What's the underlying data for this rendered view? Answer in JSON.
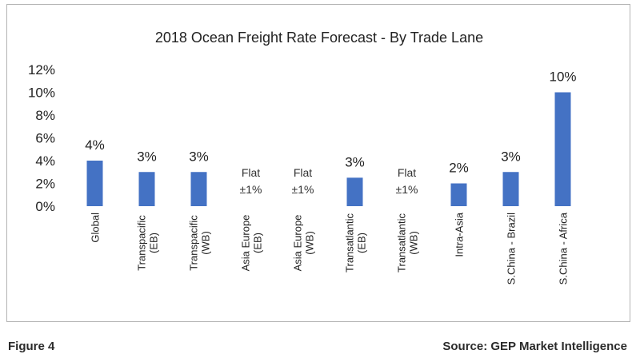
{
  "figure_label": "Figure 4",
  "source_label": "Source: GEP Market Intelligence",
  "chart_data": {
    "type": "bar",
    "title": "2018 Ocean Freight Rate Forecast - By Trade Lane",
    "xlabel": "",
    "ylabel": "",
    "ylim": [
      0,
      12
    ],
    "yticks": [
      "0%",
      "2%",
      "4%",
      "6%",
      "8%",
      "10%",
      "12%"
    ],
    "grid": false,
    "legend": "none",
    "bar_color": "#4472c4",
    "categories": [
      [
        "Global"
      ],
      [
        "Transpacific",
        "(EB)"
      ],
      [
        "Transpacific",
        "(WB)"
      ],
      [
        "Asia Europe",
        "(EB)"
      ],
      [
        "Asia Europe",
        "(WB)"
      ],
      [
        "Transatlantic",
        "(EB)"
      ],
      [
        "Transatlantic",
        "(WB)"
      ],
      [
        "Intra-Asia"
      ],
      [
        "S.China - Brazil"
      ],
      [
        "S.China - Africa"
      ]
    ],
    "values": [
      4,
      3,
      3,
      0,
      0,
      2.5,
      0,
      2,
      3,
      10
    ],
    "data_labels": [
      [
        "4%"
      ],
      [
        "3%"
      ],
      [
        "3%"
      ],
      [
        "Flat",
        "±1%"
      ],
      [
        "Flat",
        "±1%"
      ],
      [
        "3%"
      ],
      [
        "Flat",
        "±1%"
      ],
      [
        "2%"
      ],
      [
        "3%"
      ],
      [
        "10%"
      ]
    ]
  }
}
